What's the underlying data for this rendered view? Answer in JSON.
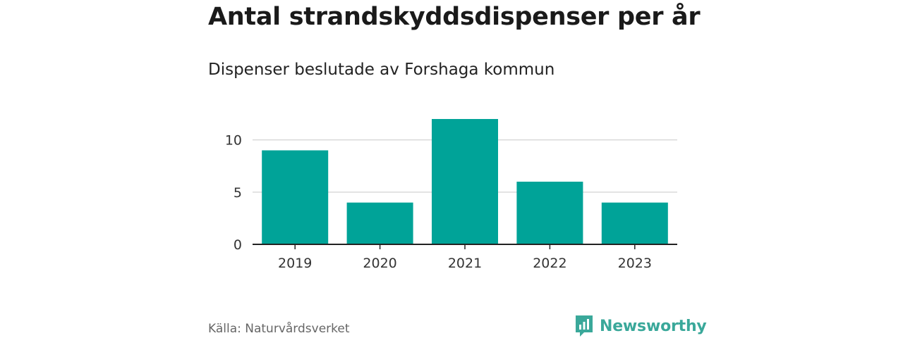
{
  "title": "Antal strandskyddsdispenser per år",
  "subtitle": "Dispenser beslutade av Forshaga kommun",
  "source": "Källa: Naturvårdsverket",
  "logo": {
    "text": "Newsworthy",
    "icon": "newsworthy-logo-icon"
  },
  "colors": {
    "bar": "#00a398",
    "grid": "#d9d9d9",
    "axis": "#222222",
    "logo": "#3aa89a"
  },
  "chart_data": {
    "type": "bar",
    "categories": [
      "2019",
      "2020",
      "2021",
      "2022",
      "2023"
    ],
    "values": [
      9,
      4,
      12,
      6,
      4
    ],
    "title": "Antal strandskyddsdispenser per år",
    "subtitle": "Dispenser beslutade av Forshaga kommun",
    "xlabel": "",
    "ylabel": "",
    "ylim": [
      0,
      12
    ],
    "yticks": [
      0,
      5,
      10
    ],
    "grid": true,
    "legend": "none"
  }
}
